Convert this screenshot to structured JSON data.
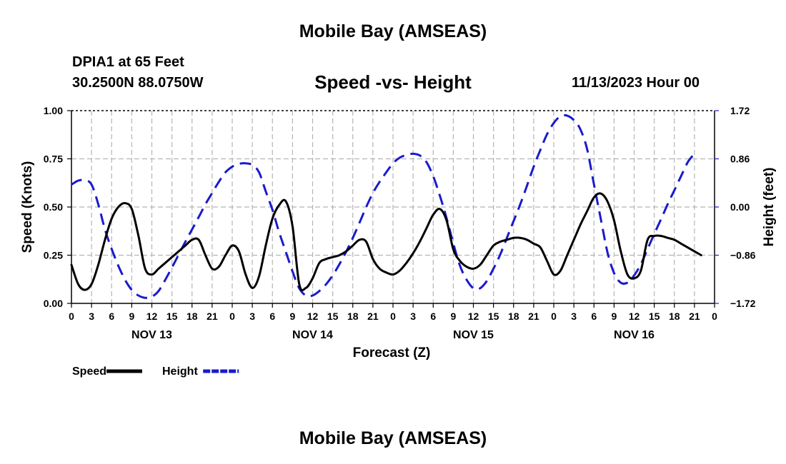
{
  "header": {
    "title": "Mobile Bay (AMSEAS)",
    "station": "DPIA1 at 65 Feet",
    "coords": "30.2500N  88.0750W",
    "run_time": "11/13/2023 Hour 00"
  },
  "footer": {
    "title": "Mobile Bay (AMSEAS)"
  },
  "chart_data": {
    "type": "line",
    "title": "Speed -vs- Height",
    "xlabel": "Forecast (Z)",
    "ylabel_left": "Speed (Knots)",
    "ylabel_right": "Height (feet)",
    "x_unit": "hours since 11/13/2023 00Z",
    "xlim": [
      0,
      96
    ],
    "ylim_left": [
      0,
      1.0
    ],
    "ylim_right": [
      -1.72,
      1.72
    ],
    "left_ticks": [
      "0.00",
      "0.25",
      "0.50",
      "0.75",
      "1.00"
    ],
    "right_ticks": [
      "−1.72",
      "−0.86",
      "0.00",
      "0.86",
      "1.72"
    ],
    "x_tick_hours": [
      0,
      3,
      6,
      9,
      12,
      15,
      18,
      21,
      24,
      27,
      30,
      33,
      36,
      39,
      42,
      45,
      48,
      51,
      54,
      57,
      60,
      63,
      66,
      69,
      72,
      75,
      78,
      81,
      84,
      87,
      90,
      93,
      96
    ],
    "x_tick_labels": [
      "0",
      "3",
      "6",
      "9",
      "12",
      "15",
      "18",
      "21",
      "0",
      "3",
      "6",
      "9",
      "12",
      "15",
      "18",
      "21",
      "0",
      "3",
      "6",
      "9",
      "12",
      "15",
      "18",
      "21",
      "0",
      "3",
      "6",
      "9",
      "12",
      "15",
      "18",
      "21",
      "0"
    ],
    "day_labels": [
      {
        "hour": 12,
        "label": "NOV 13"
      },
      {
        "hour": 36,
        "label": "NOV 14"
      },
      {
        "hour": 60,
        "label": "NOV 15"
      },
      {
        "hour": 84,
        "label": "NOV 16"
      }
    ],
    "grid": true,
    "legend": [
      {
        "label": "Speed",
        "color": "#000000",
        "dashed": false
      },
      {
        "label": "Height",
        "color": "#1a1acc",
        "dashed": true
      }
    ],
    "series": [
      {
        "name": "Speed",
        "axis": "left",
        "color": "#000000",
        "points": [
          [
            0,
            0.2
          ],
          [
            1,
            0.1
          ],
          [
            2,
            0.07
          ],
          [
            3,
            0.1
          ],
          [
            4,
            0.2
          ],
          [
            5,
            0.33
          ],
          [
            6,
            0.44
          ],
          [
            7,
            0.5
          ],
          [
            8,
            0.52
          ],
          [
            9,
            0.49
          ],
          [
            10,
            0.35
          ],
          [
            11,
            0.18
          ],
          [
            12,
            0.15
          ],
          [
            13,
            0.18
          ],
          [
            14,
            0.21
          ],
          [
            15,
            0.24
          ],
          [
            16,
            0.27
          ],
          [
            17,
            0.3
          ],
          [
            18,
            0.33
          ],
          [
            19,
            0.33
          ],
          [
            20,
            0.25
          ],
          [
            21,
            0.18
          ],
          [
            22,
            0.19
          ],
          [
            23,
            0.25
          ],
          [
            24,
            0.3
          ],
          [
            25,
            0.27
          ],
          [
            26,
            0.15
          ],
          [
            27,
            0.08
          ],
          [
            28,
            0.14
          ],
          [
            29,
            0.3
          ],
          [
            30,
            0.44
          ],
          [
            31,
            0.51
          ],
          [
            32,
            0.53
          ],
          [
            33,
            0.4
          ],
          [
            34,
            0.1
          ],
          [
            35,
            0.08
          ],
          [
            36,
            0.13
          ],
          [
            37,
            0.21
          ],
          [
            38,
            0.23
          ],
          [
            39,
            0.24
          ],
          [
            40,
            0.25
          ],
          [
            41,
            0.27
          ],
          [
            42,
            0.3
          ],
          [
            43,
            0.33
          ],
          [
            44,
            0.32
          ],
          [
            45,
            0.23
          ],
          [
            46,
            0.18
          ],
          [
            47,
            0.16
          ],
          [
            48,
            0.15
          ],
          [
            49,
            0.17
          ],
          [
            50,
            0.21
          ],
          [
            51,
            0.26
          ],
          [
            52,
            0.32
          ],
          [
            53,
            0.39
          ],
          [
            54,
            0.46
          ],
          [
            55,
            0.49
          ],
          [
            56,
            0.43
          ],
          [
            57,
            0.28
          ],
          [
            58,
            0.22
          ],
          [
            59,
            0.19
          ],
          [
            60,
            0.18
          ],
          [
            61,
            0.2
          ],
          [
            62,
            0.25
          ],
          [
            63,
            0.3
          ],
          [
            64,
            0.32
          ],
          [
            65,
            0.33
          ],
          [
            66,
            0.34
          ],
          [
            67,
            0.34
          ],
          [
            68,
            0.33
          ],
          [
            69,
            0.31
          ],
          [
            70,
            0.29
          ],
          [
            71,
            0.22
          ],
          [
            72,
            0.15
          ],
          [
            73,
            0.17
          ],
          [
            74,
            0.25
          ],
          [
            75,
            0.33
          ],
          [
            76,
            0.41
          ],
          [
            77,
            0.48
          ],
          [
            78,
            0.55
          ],
          [
            79,
            0.57
          ],
          [
            80,
            0.53
          ],
          [
            81,
            0.43
          ],
          [
            82,
            0.27
          ],
          [
            83,
            0.15
          ],
          [
            84,
            0.13
          ],
          [
            85,
            0.17
          ],
          [
            86,
            0.33
          ],
          [
            87,
            0.35
          ],
          [
            88,
            0.35
          ],
          [
            89,
            0.34
          ],
          [
            90,
            0.33
          ],
          [
            91,
            0.31
          ],
          [
            92,
            0.29
          ],
          [
            93,
            0.27
          ],
          [
            94,
            0.25
          ]
        ]
      },
      {
        "name": "Height",
        "axis": "right",
        "color": "#1a1acc",
        "points": [
          [
            0,
            0.4
          ],
          [
            1,
            0.47
          ],
          [
            2,
            0.48
          ],
          [
            3,
            0.4
          ],
          [
            4,
            0.05
          ],
          [
            5,
            -0.4
          ],
          [
            6,
            -0.75
          ],
          [
            7,
            -1.05
          ],
          [
            8,
            -1.3
          ],
          [
            9,
            -1.48
          ],
          [
            10,
            -1.58
          ],
          [
            11,
            -1.62
          ],
          [
            12,
            -1.6
          ],
          [
            13,
            -1.5
          ],
          [
            14,
            -1.3
          ],
          [
            15,
            -1.08
          ],
          [
            16,
            -0.85
          ],
          [
            17,
            -0.62
          ],
          [
            18,
            -0.4
          ],
          [
            19,
            -0.18
          ],
          [
            20,
            0.05
          ],
          [
            21,
            0.25
          ],
          [
            22,
            0.45
          ],
          [
            23,
            0.62
          ],
          [
            24,
            0.72
          ],
          [
            25,
            0.77
          ],
          [
            26,
            0.78
          ],
          [
            27,
            0.75
          ],
          [
            28,
            0.62
          ],
          [
            29,
            0.28
          ],
          [
            30,
            -0.05
          ],
          [
            31,
            -0.45
          ],
          [
            32,
            -0.8
          ],
          [
            33,
            -1.15
          ],
          [
            34,
            -1.45
          ],
          [
            35,
            -1.58
          ],
          [
            36,
            -1.58
          ],
          [
            37,
            -1.5
          ],
          [
            38,
            -1.38
          ],
          [
            39,
            -1.22
          ],
          [
            40,
            -1.02
          ],
          [
            41,
            -0.8
          ],
          [
            42,
            -0.55
          ],
          [
            43,
            -0.28
          ],
          [
            44,
            0.0
          ],
          [
            45,
            0.25
          ],
          [
            46,
            0.45
          ],
          [
            47,
            0.62
          ],
          [
            48,
            0.78
          ],
          [
            49,
            0.88
          ],
          [
            50,
            0.93
          ],
          [
            51,
            0.95
          ],
          [
            52,
            0.92
          ],
          [
            53,
            0.8
          ],
          [
            54,
            0.55
          ],
          [
            55,
            0.2
          ],
          [
            56,
            -0.2
          ],
          [
            57,
            -0.65
          ],
          [
            58,
            -1.05
          ],
          [
            59,
            -1.3
          ],
          [
            60,
            -1.45
          ],
          [
            61,
            -1.45
          ],
          [
            62,
            -1.32
          ],
          [
            63,
            -1.1
          ],
          [
            64,
            -0.85
          ],
          [
            65,
            -0.55
          ],
          [
            66,
            -0.25
          ],
          [
            67,
            0.05
          ],
          [
            68,
            0.38
          ],
          [
            69,
            0.72
          ],
          [
            70,
            1.02
          ],
          [
            71,
            1.3
          ],
          [
            72,
            1.5
          ],
          [
            73,
            1.62
          ],
          [
            74,
            1.63
          ],
          [
            75,
            1.55
          ],
          [
            76,
            1.38
          ],
          [
            77,
            1.02
          ],
          [
            78,
            0.4
          ],
          [
            79,
            -0.2
          ],
          [
            80,
            -0.8
          ],
          [
            81,
            -1.18
          ],
          [
            82,
            -1.35
          ],
          [
            83,
            -1.35
          ],
          [
            84,
            -1.22
          ],
          [
            85,
            -1.02
          ],
          [
            86,
            -0.75
          ],
          [
            87,
            -0.48
          ],
          [
            88,
            -0.22
          ],
          [
            89,
            0.05
          ],
          [
            90,
            0.3
          ],
          [
            91,
            0.55
          ],
          [
            92,
            0.8
          ],
          [
            93,
            0.95
          ]
        ]
      }
    ]
  }
}
